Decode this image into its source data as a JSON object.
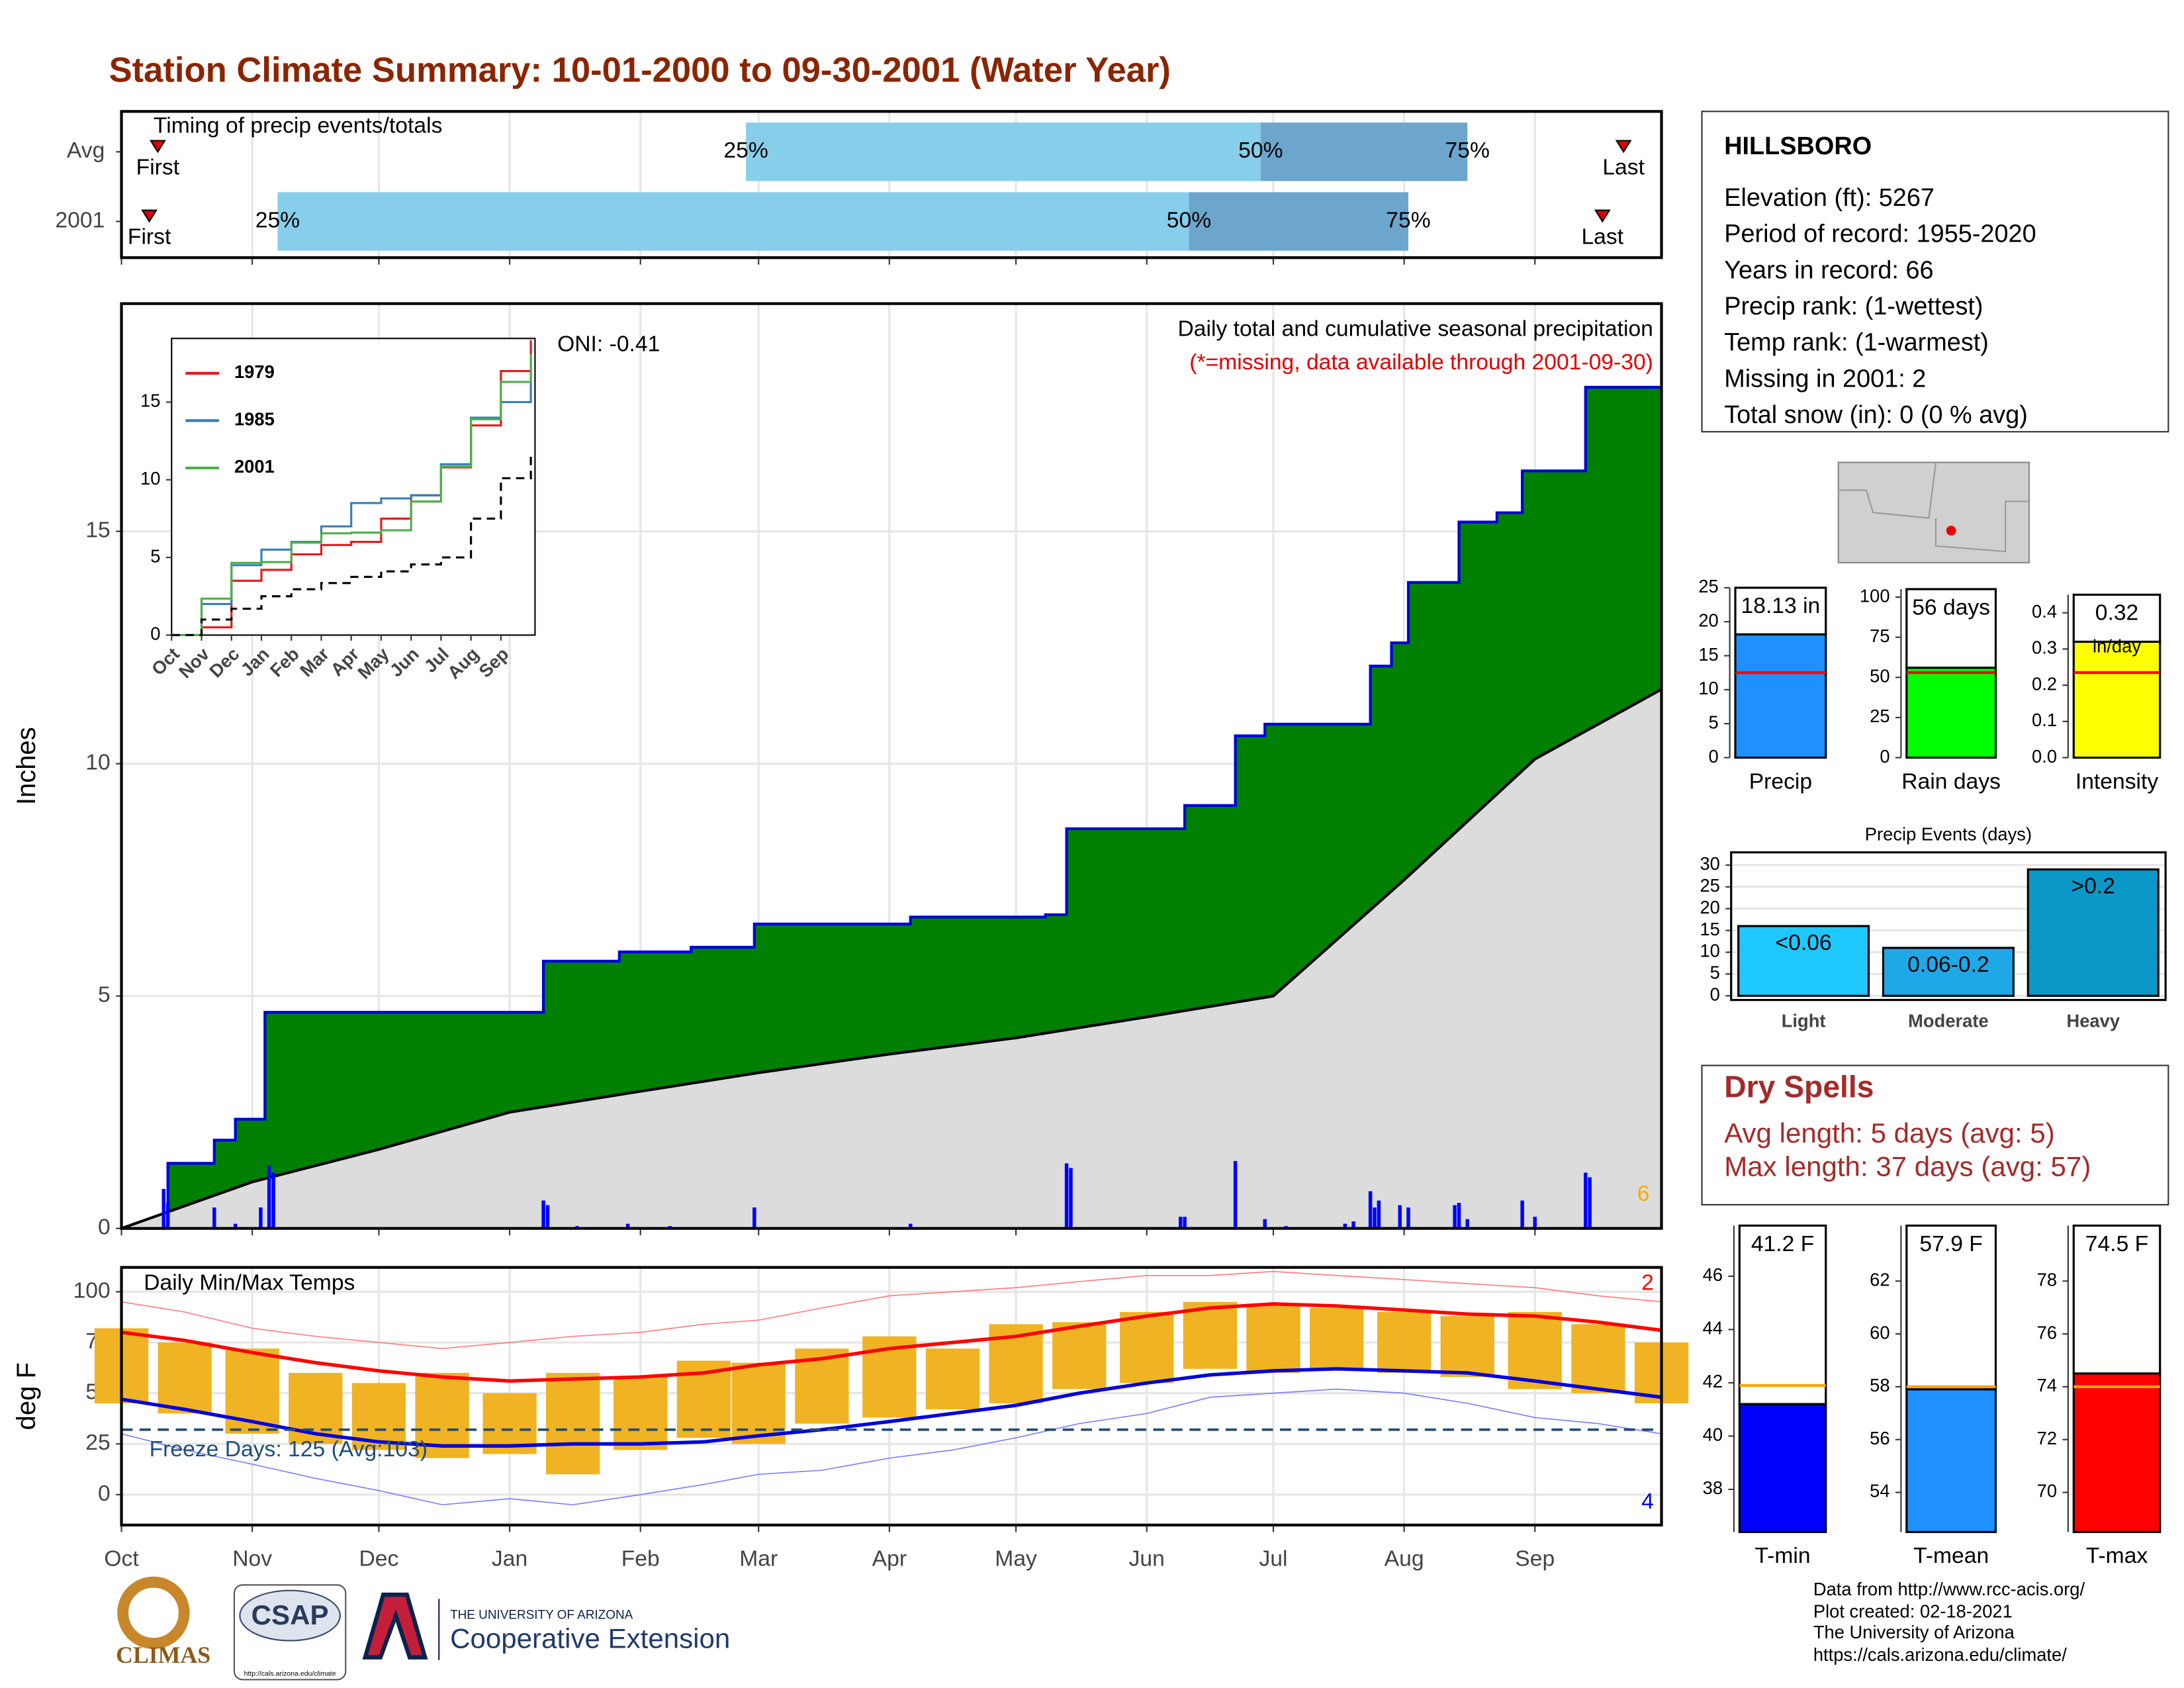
{
  "title": "Station Climate Summary: 10-01-2000 to 09-30-2001 (Water Year)",
  "station_info": {
    "name": "HILLSBORO",
    "lines": [
      "Elevation (ft): 5267",
      "Period of record: 1955-2020",
      "Years in record: 66",
      "Precip rank:  (1-wettest)",
      "Temp rank:  (1-warmest)",
      "Missing in 2001: 2",
      "Total snow (in): 0 (0 % avg)"
    ]
  },
  "dry_spells": {
    "title": "Dry Spells",
    "lines": [
      "Avg length: 5 days (avg: 5)",
      "Max length: 37 days (avg: 57)"
    ]
  },
  "footer": {
    "source_lines": [
      "Data from http://www.rcc-acis.org/",
      "Plot created: 02-18-2021",
      "The University of Arizona",
      "https://cals.arizona.edu/climate/"
    ],
    "logos": [
      "CLIMAS",
      "CSAP",
      "http://cals.arizona.edu/climate",
      "THE UNIVERSITY OF ARIZONA",
      "Cooperative Extension"
    ]
  },
  "chart_data": [
    {
      "type": "timeline",
      "title": "Timing of precip events/totals",
      "xlim": [
        0,
        365
      ],
      "rows": [
        {
          "name": "Avg",
          "first": 8.6,
          "q25": 148,
          "q50": 270,
          "q75": 319,
          "last": 356
        },
        {
          "name": "2001",
          "first": 6.6,
          "q25": 37,
          "q50": 253,
          "q75": 305,
          "last": 351
        }
      ],
      "first_label": "First",
      "last_label": "Last",
      "quantile_labels": [
        "25%",
        "50%",
        "75%"
      ],
      "colors": [
        "#87ceeb",
        "#6ca6cd"
      ],
      "marker_color": "#e00000"
    },
    {
      "type": "step_area",
      "title": "Daily total and cumulative seasonal precipitation",
      "subtitle": "(*=missing, data available through 2001-09-30)",
      "annotation": "ONI: -0.41",
      "ylabel": "Inches",
      "count_label": 6,
      "xlim": [
        0,
        365
      ],
      "ylim": [
        0,
        19.9
      ],
      "yticks": [
        0,
        5,
        10,
        15
      ],
      "grid": true,
      "series": [
        {
          "color": "#008000",
          "line_color": "#0000dd",
          "x": [
            0,
            10,
            11,
            22,
            27,
            34,
            100,
            118,
            135,
            150,
            187,
            219,
            224,
            252,
            264,
            271,
            296,
            301,
            305,
            317,
            326,
            332,
            347,
            365
          ],
          "values": [
            0,
            0.2,
            1.4,
            1.9,
            2.35,
            4.65,
            5.75,
            5.95,
            6.05,
            6.55,
            6.7,
            6.75,
            8.6,
            9.1,
            10.6,
            10.85,
            12.1,
            12.6,
            13.9,
            15.2,
            15.4,
            16.3,
            18.1,
            18.1
          ]
        },
        {
          "color": "#dcdcdc",
          "line_color": "#000000",
          "x": [
            0,
            31,
            61,
            92,
            123,
            151,
            182,
            212,
            243,
            273,
            304,
            335,
            365
          ],
          "values": [
            0,
            1.0,
            1.7,
            2.5,
            2.95,
            3.35,
            3.75,
            4.1,
            4.55,
            5.0,
            7.5,
            10.1,
            11.6
          ]
        }
      ],
      "daily": {
        "color": "#0000ff",
        "x": [
          10,
          11,
          22,
          27,
          33,
          35,
          36,
          100,
          101,
          108,
          120,
          130,
          150,
          187,
          224,
          225,
          251,
          252,
          264,
          271,
          276,
          290,
          292,
          296,
          297,
          298,
          303,
          305,
          316,
          317,
          319,
          332,
          335,
          347,
          348
        ],
        "values": [
          0.85,
          0.55,
          0.45,
          0.1,
          0.45,
          1.35,
          1.2,
          0.6,
          0.5,
          0.05,
          0.1,
          0.05,
          0.45,
          0.1,
          1.4,
          1.3,
          0.25,
          0.25,
          1.45,
          0.2,
          0.05,
          0.1,
          0.15,
          0.8,
          0.45,
          0.6,
          0.5,
          0.45,
          0.5,
          0.55,
          0.2,
          0.6,
          0.25,
          1.2,
          1.1
        ]
      }
    },
    {
      "type": "line",
      "xlim": [
        0,
        12
      ],
      "ylim": [
        0,
        19.1
      ],
      "yticks": [
        0,
        5,
        10,
        15
      ],
      "xticks": [
        {
          "value": 0,
          "label": "Oct"
        },
        {
          "value": 1,
          "label": "Nov"
        },
        {
          "value": 2,
          "label": "Dec"
        },
        {
          "value": 3,
          "label": "Jan"
        },
        {
          "value": 4,
          "label": "Feb"
        },
        {
          "value": 5,
          "label": "Mar"
        },
        {
          "value": 6,
          "label": "Apr"
        },
        {
          "value": 7,
          "label": "May"
        },
        {
          "value": 8,
          "label": "Jun"
        },
        {
          "value": 9,
          "label": "Jul"
        },
        {
          "value": 10,
          "label": "Aug"
        },
        {
          "value": 11,
          "label": "Sep"
        }
      ],
      "x": [
        0,
        1,
        2,
        3,
        4,
        5,
        6,
        7,
        8,
        9,
        10,
        11,
        12
      ],
      "series": [
        {
          "name": "1979",
          "color": "#e41a1c",
          "values": [
            0,
            0.5,
            3.5,
            4.2,
            5.2,
            5.8,
            6.0,
            7.5,
            9.0,
            10.8,
            13.5,
            17.0,
            19.0
          ]
        },
        {
          "name": "1985",
          "color": "#377eb8",
          "values": [
            0,
            2.0,
            4.5,
            5.5,
            6.0,
            7.0,
            8.5,
            8.8,
            9.0,
            11.0,
            14.0,
            15.0,
            17.0
          ]
        },
        {
          "name": "2001",
          "color": "#4daf4a",
          "values": [
            0,
            2.35,
            4.65,
            4.7,
            5.95,
            6.55,
            6.6,
            6.75,
            8.6,
            10.85,
            13.9,
            16.3,
            18.1
          ]
        },
        {
          "color": "#000000",
          "dashed": true,
          "values": [
            0,
            1.0,
            1.7,
            2.5,
            2.95,
            3.35,
            3.75,
            4.1,
            4.55,
            5.0,
            7.5,
            10.1,
            11.6
          ]
        }
      ]
    },
    {
      "type": "temp_range",
      "title": "Daily Min/Max Temps",
      "ylabel": "deg F",
      "xlim": [
        0,
        365
      ],
      "ylim": [
        -15,
        112
      ],
      "yticks": [
        0,
        25,
        50,
        75,
        100
      ],
      "grid": true,
      "xticks": [
        {
          "value": 0,
          "label": "Oct"
        },
        {
          "value": 31,
          "label": "Nov"
        },
        {
          "value": 61,
          "label": "Dec"
        },
        {
          "value": 92,
          "label": "Jan"
        },
        {
          "value": 123,
          "label": "Feb"
        },
        {
          "value": 151,
          "label": "Mar"
        },
        {
          "value": 182,
          "label": "Apr"
        },
        {
          "value": 212,
          "label": "May"
        },
        {
          "value": 243,
          "label": "Jun"
        },
        {
          "value": 273,
          "label": "Jul"
        },
        {
          "value": 304,
          "label": "Aug"
        },
        {
          "value": 335,
          "label": "Sep"
        }
      ],
      "x": [
        0,
        15,
        31,
        46,
        61,
        76,
        92,
        107,
        123,
        138,
        151,
        166,
        182,
        197,
        212,
        227,
        243,
        258,
        273,
        288,
        304,
        319,
        335,
        350,
        365
      ],
      "range": {
        "color": "#f0b323",
        "low": [
          45,
          40,
          30,
          25,
          22,
          18,
          20,
          10,
          22,
          28,
          25,
          35,
          38,
          42,
          45,
          52,
          55,
          62,
          60,
          62,
          60,
          58,
          52,
          50,
          45
        ],
        "high": [
          82,
          75,
          72,
          60,
          55,
          60,
          50,
          60,
          58,
          66,
          65,
          72,
          78,
          72,
          84,
          85,
          90,
          95,
          94,
          92,
          90,
          88,
          90,
          84,
          75
        ]
      },
      "series": [
        {
          "color": "#ff0000",
          "values": [
            80,
            76,
            70,
            65,
            61,
            58,
            56,
            57,
            58,
            60,
            64,
            67,
            72,
            75,
            78,
            83,
            88,
            92,
            94,
            93,
            91,
            89,
            88,
            85,
            81
          ]
        },
        {
          "color": "#0000dd",
          "values": [
            47,
            42,
            36,
            30,
            26,
            24,
            24,
            25,
            25,
            26,
            29,
            32,
            36,
            40,
            44,
            50,
            55,
            59,
            61,
            62,
            61,
            60,
            56,
            52,
            48
          ]
        },
        {
          "color": "#ff8080",
          "values": [
            95,
            90,
            82,
            78,
            75,
            72,
            75,
            78,
            80,
            84,
            86,
            92,
            98,
            100,
            102,
            105,
            108,
            108,
            110,
            108,
            106,
            104,
            102,
            98,
            95
          ]
        },
        {
          "color": "#8080ff",
          "values": [
            30,
            22,
            15,
            8,
            2,
            -5,
            -2,
            -5,
            0,
            5,
            10,
            12,
            18,
            22,
            28,
            35,
            40,
            48,
            50,
            52,
            50,
            45,
            38,
            35,
            30
          ]
        }
      ],
      "freeze_line": 32,
      "freeze_color": "#1f4e79",
      "freeze_label": "Freeze Days: 125 (Avg:103)",
      "record_high_count": 2,
      "record_low_count": 4
    },
    {
      "type": "mini_bar",
      "category": "Precip",
      "values": [
        18.13
      ],
      "value_labels": [
        "18.13 in"
      ],
      "avg": 12.5,
      "avg_color": "#ff0000",
      "color": "#1e90ff",
      "ylim": [
        0,
        25
      ],
      "yticks": [
        0,
        5,
        10,
        15,
        20,
        25
      ]
    },
    {
      "type": "mini_bar",
      "category": "Rain days",
      "values": [
        56
      ],
      "value_labels": [
        "56 days"
      ],
      "avg": 53,
      "avg_color": "#ff0000",
      "color": "#00ff00",
      "ylim": [
        0,
        105
      ],
      "yticks": [
        0,
        25,
        50,
        75,
        100
      ]
    },
    {
      "type": "mini_bar",
      "category": "Intensity",
      "values": [
        0.32
      ],
      "value_labels": [
        "0.32"
      ],
      "unit": "in/day",
      "avg": 0.235,
      "avg_color": "#ff0000",
      "color": "#ffff00",
      "ylim": [
        0,
        0.45
      ],
      "yticks": [
        {
          "value": 0,
          "label": "0.0"
        },
        0.1,
        0.2,
        0.3,
        0.4
      ]
    },
    {
      "type": "bar",
      "title": "Precip Events (days)",
      "categories": [
        "Light",
        "Moderate",
        "Heavy"
      ],
      "values": [
        16,
        11,
        29
      ],
      "value_labels": [
        "<0.06",
        "0.06-0.2",
        ">0.2"
      ],
      "colors": [
        "#1ec8ff",
        "#1fa8e8",
        "#0a98c8"
      ],
      "ylim": [
        0,
        31
      ],
      "yticks": [
        0,
        5,
        10,
        15,
        20,
        25,
        30
      ],
      "grid": true
    },
    {
      "type": "mini_bar",
      "category": "T-min",
      "values": [
        41.2
      ],
      "value_labels": [
        "41.2 F"
      ],
      "avg": 41.9,
      "avg_color": "#ffa500",
      "color": "#0000ff",
      "ylim": [
        36.4,
        47.9
      ],
      "yticks": [
        38,
        40,
        42,
        44,
        46
      ]
    },
    {
      "type": "mini_bar",
      "category": "T-mean",
      "values": [
        57.9
      ],
      "value_labels": [
        "57.9 F"
      ],
      "avg": 58.0,
      "avg_color": "#ffa500",
      "color": "#1e90ff",
      "ylim": [
        52.5,
        64.1
      ],
      "yticks": [
        54,
        56,
        58,
        60,
        62
      ]
    },
    {
      "type": "mini_bar",
      "category": "T-max",
      "values": [
        74.5
      ],
      "value_labels": [
        "74.5 F"
      ],
      "avg": 74.0,
      "avg_color": "#ffa500",
      "color": "#ff0000",
      "ylim": [
        68.5,
        80.1
      ],
      "yticks": [
        70,
        72,
        74,
        76,
        78
      ]
    }
  ]
}
